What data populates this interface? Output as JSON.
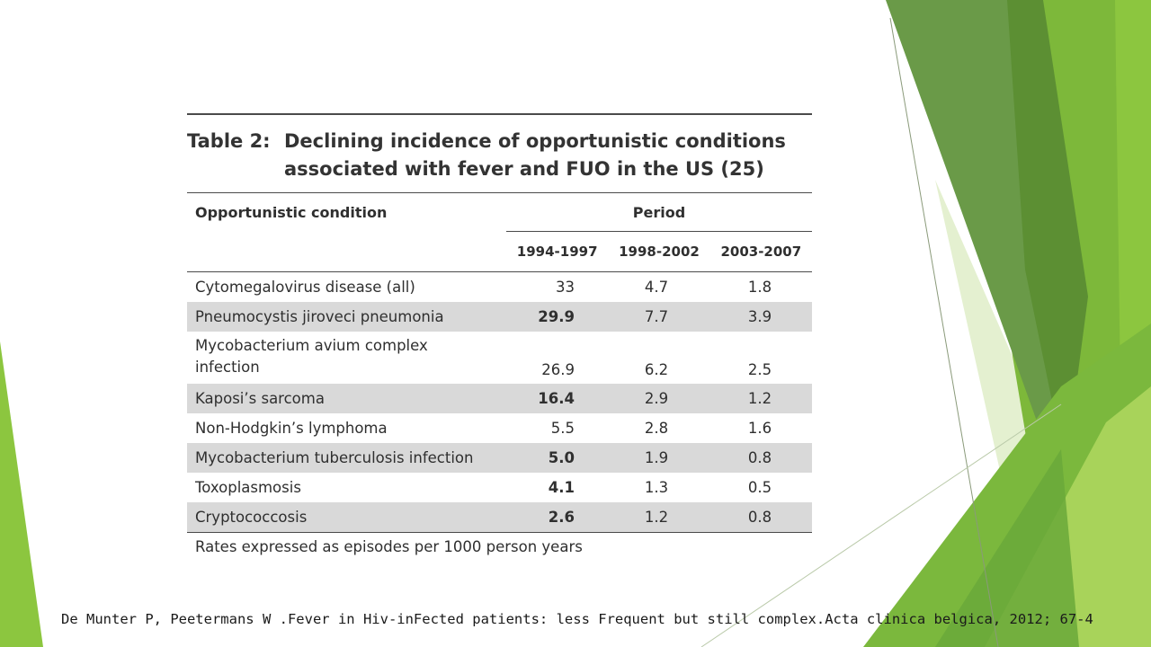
{
  "table": {
    "label": "Table 2:",
    "title_line1": "Declining incidence of opportunistic conditions",
    "title_line2": "associated with fever and FUO in the US (25)",
    "col_condition": "Opportunistic condition",
    "col_period": "Period",
    "years": [
      "1994-1997",
      "1998-2002",
      "2003-2007"
    ],
    "rows": [
      {
        "name": "Cytomegalovirus disease (all)",
        "v1": "33",
        "v2": "4.7",
        "v3": "1.8"
      },
      {
        "name": "Pneumocystis jiroveci pneumonia",
        "v1": "29.9",
        "v2": "7.7",
        "v3": "3.9"
      },
      {
        "name_line1": "Mycobacterium avium complex",
        "name_line2": "infection",
        "v1": "26.9",
        "v2": "6.2",
        "v3": "2.5"
      },
      {
        "name": "Kaposi’s sarcoma",
        "v1": "16.4",
        "v2": "2.9",
        "v3": "1.2"
      },
      {
        "name": "Non-Hodgkin’s lymphoma",
        "v1": "5.5",
        "v2": "2.8",
        "v3": "1.6"
      },
      {
        "name": "Mycobacterium tuberculosis infection",
        "v1": "5.0",
        "v2": "1.9",
        "v3": "0.8"
      },
      {
        "name": "Toxoplasmosis",
        "v1": "4.1",
        "v2": "1.3",
        "v3": "0.5"
      },
      {
        "name": "Cryptococcosis",
        "v1": "2.6",
        "v2": "1.2",
        "v3": "0.8"
      }
    ],
    "note": "Rates expressed as episodes per 1000 person years"
  },
  "citation": "De Munter P, Peetermans W .Fever in Hiv-inFected patients: less Frequent but still complex.Acta clinica belgica, 2012; 67-4",
  "colors": {
    "green_dark": "#5e9436",
    "green_mid": "#7fb43a",
    "green_light": "#9bc94a",
    "green_pale": "#dcebc5",
    "row_shade": "#d9d9d9"
  }
}
